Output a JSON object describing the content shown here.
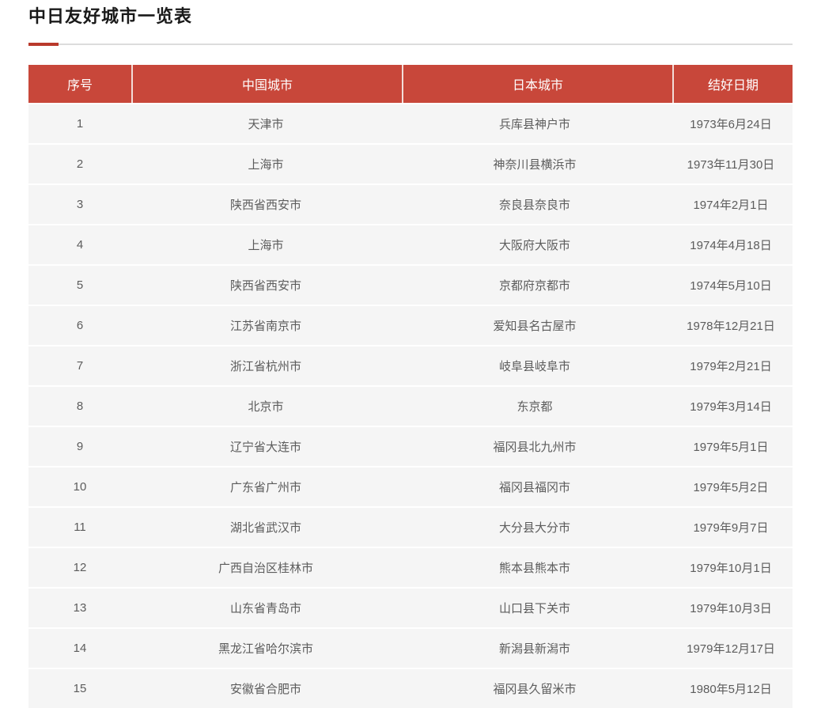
{
  "page": {
    "title": "中日友好城市一览表"
  },
  "table": {
    "headers": [
      "序号",
      "中国城市",
      "日本城市",
      "结好日期"
    ],
    "rows": [
      {
        "no": "1",
        "china": "天津市",
        "japan": "兵库县神户市",
        "date": "1973年6月24日"
      },
      {
        "no": "2",
        "china": "上海市",
        "japan": "神奈川县横浜市",
        "date": "1973年11月30日"
      },
      {
        "no": "3",
        "china": "陕西省西安市",
        "japan": "奈良县奈良市",
        "date": "1974年2月1日"
      },
      {
        "no": "4",
        "china": "上海市",
        "japan": "大阪府大阪市",
        "date": "1974年4月18日"
      },
      {
        "no": "5",
        "china": "陕西省西安市",
        "japan": "京都府京都市",
        "date": "1974年5月10日"
      },
      {
        "no": "6",
        "china": "江苏省南京市",
        "japan": "爱知县名古屋市",
        "date": "1978年12月21日"
      },
      {
        "no": "7",
        "china": "浙江省杭州市",
        "japan": "岐阜县岐阜市",
        "date": "1979年2月21日"
      },
      {
        "no": "8",
        "china": "北京市",
        "japan": "东京都",
        "date": "1979年3月14日"
      },
      {
        "no": "9",
        "china": "辽宁省大连市",
        "japan": "福冈县北九州市",
        "date": "1979年5月1日"
      },
      {
        "no": "10",
        "china": "广东省广州市",
        "japan": "福冈县福冈市",
        "date": "1979年5月2日"
      },
      {
        "no": "11",
        "china": "湖北省武汉市",
        "japan": "大分县大分市",
        "date": "1979年9月7日"
      },
      {
        "no": "12",
        "china": "广西自治区桂林市",
        "japan": "熊本县熊本市",
        "date": "1979年10月1日"
      },
      {
        "no": "13",
        "china": "山东省青岛市",
        "japan": "山口县下关市",
        "date": "1979年10月3日"
      },
      {
        "no": "14",
        "china": "黑龙江省哈尔滨市",
        "japan": "新潟县新潟市",
        "date": "1979年12月17日"
      },
      {
        "no": "15",
        "china": "安徽省合肥市",
        "japan": "福冈县久留米市",
        "date": "1980年5月12日"
      }
    ]
  },
  "colors": {
    "header_bg": "#c8473a",
    "accent_red": "#b9392b",
    "row_bg": "#f5f5f5",
    "divider_gray": "#dcdcdc",
    "body_text": "#5c5c5c"
  }
}
